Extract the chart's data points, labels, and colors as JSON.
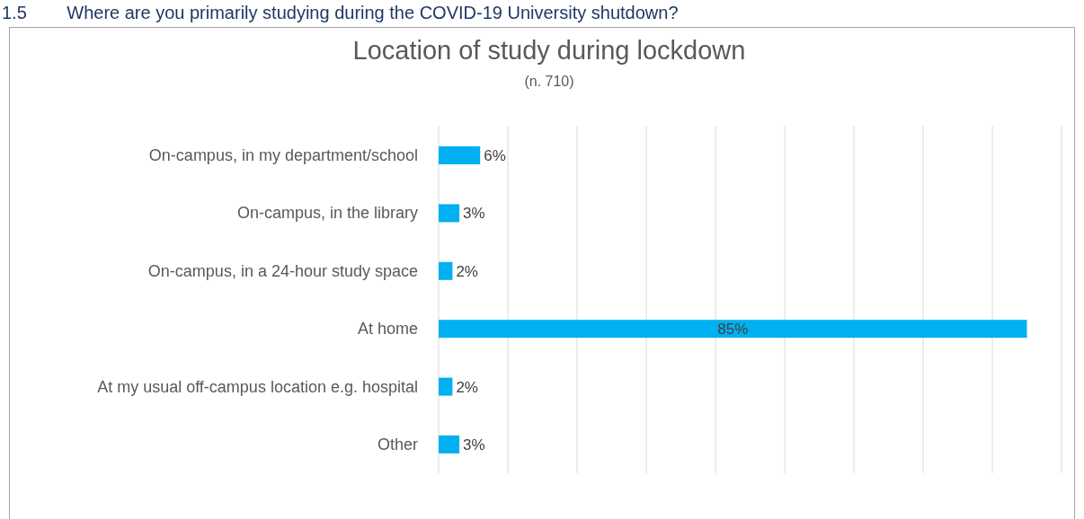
{
  "chart_data": {
    "type": "bar",
    "orientation": "horizontal",
    "title": "Location of study during lockdown",
    "subtitle": "(n. 710)",
    "annotations": [
      "1.5        Where are you primarily studying during the COVID-19 University shutdown?"
    ],
    "categories": [
      "On-campus, in my department/school",
      "On-campus, in the library",
      "On-campus, in a 24-hour study space",
      "At home",
      "At my usual off-campus location e.g. hospital",
      "Other"
    ],
    "values": [
      6,
      3,
      2,
      85,
      2,
      3
    ],
    "value_labels": [
      "6%",
      "3%",
      "2%",
      "85%",
      "2%",
      "3%"
    ],
    "color": "#00b0f0",
    "xlim": [
      0,
      90
    ],
    "xticks": [
      {
        "value": 0,
        "label": null
      },
      {
        "value": 10,
        "label": null
      },
      {
        "value": 20,
        "label": null
      },
      {
        "value": 30,
        "label": null
      },
      {
        "value": 40,
        "label": null
      },
      {
        "value": 50,
        "label": null
      },
      {
        "value": 60,
        "label": null
      },
      {
        "value": 70,
        "label": null
      },
      {
        "value": 80,
        "label": null
      },
      {
        "value": 90,
        "label": null
      }
    ],
    "grid": "x",
    "tick_labels": "y"
  }
}
